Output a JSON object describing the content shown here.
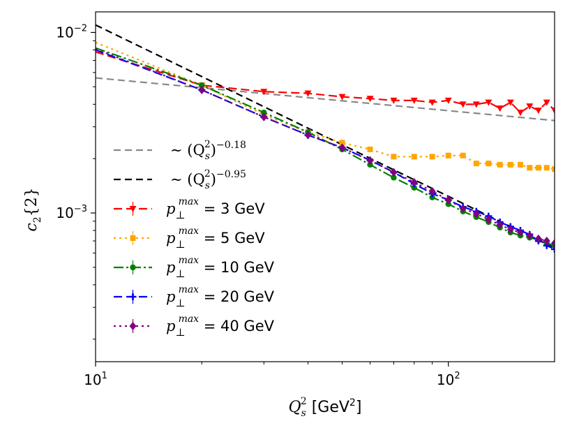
{
  "chart_data": {
    "type": "line",
    "xscale": "log",
    "yscale": "log",
    "xlim": [
      10,
      200
    ],
    "ylim": [
      0.00015,
      0.013
    ],
    "xlabel": "Q_s^2 [GeV^2]",
    "xlabel_parts": {
      "main": "Q",
      "sub": "s",
      "sup": "2",
      "unit": " [GeV",
      "unit_sup": "2",
      "unit_end": "]"
    },
    "ylabel": "c_2{2}",
    "ylabel_parts": {
      "main": "c",
      "sub": "2",
      "rest": "{2}"
    },
    "x_ticks": [
      {
        "value": 10,
        "base": "10",
        "exp": "1"
      },
      {
        "value": 100,
        "base": "10",
        "exp": "2"
      }
    ],
    "y_ticks": [
      {
        "value": 0.01,
        "base": "10",
        "exp": "−2"
      },
      {
        "value": 0.001,
        "base": "10",
        "exp": "−3"
      }
    ],
    "legend_position": "lower-left",
    "fits": [
      {
        "name": "fit-018",
        "label": "∼ (Q_s^2)^−0.18",
        "prefix": "∼ (Q",
        "sub": "s",
        "sup": "2",
        "close": ")",
        "exp": "−0.18",
        "color": "#888888",
        "dash": "10,6",
        "x": [
          10,
          200
        ],
        "y": [
          0.0056,
          0.00325
        ]
      },
      {
        "name": "fit-095",
        "label": "∼ (Q_s^2)^−0.95",
        "prefix": "∼ (Q",
        "sub": "s",
        "sup": "2",
        "close": ")",
        "exp": "−0.95",
        "color": "#000000",
        "dash": "10,6",
        "x": [
          10,
          200
        ],
        "y": [
          0.011,
          0.00064
        ]
      }
    ],
    "series": [
      {
        "name": "p3",
        "label": "p⊥^max = 3 GeV",
        "value_text": " = 3 GeV",
        "color": "#ff0000",
        "dash": "12,6",
        "marker": "triangle-down",
        "x": [
          10,
          20,
          30,
          40,
          50,
          60,
          70,
          80,
          90,
          100,
          110,
          120,
          130,
          140,
          150,
          160,
          170,
          180,
          190,
          200
        ],
        "y": [
          0.0078,
          0.0051,
          0.0047,
          0.0046,
          0.0044,
          0.0043,
          0.0042,
          0.0042,
          0.0041,
          0.0042,
          0.004,
          0.004,
          0.0041,
          0.0038,
          0.0041,
          0.0036,
          0.0039,
          0.0037,
          0.0041,
          0.0037
        ]
      },
      {
        "name": "p5",
        "label": "p⊥^max = 5 GeV",
        "value_text": " = 5 GeV",
        "color": "#ffa500",
        "dash": "3,5",
        "marker": "square",
        "x": [
          10,
          20,
          30,
          40,
          50,
          60,
          70,
          80,
          90,
          100,
          110,
          120,
          130,
          140,
          150,
          160,
          170,
          180,
          190,
          200
        ],
        "y": [
          0.0088,
          0.0051,
          0.0035,
          0.0028,
          0.00245,
          0.00225,
          0.00205,
          0.00205,
          0.00205,
          0.00208,
          0.00208,
          0.00188,
          0.00188,
          0.00185,
          0.00185,
          0.00185,
          0.00178,
          0.00178,
          0.00178,
          0.00175
        ]
      },
      {
        "name": "p10",
        "label": "p⊥^max = 10 GeV",
        "value_text": " = 10 GeV",
        "color": "#008000",
        "dash": "14,4,3,4",
        "marker": "circle",
        "x": [
          10,
          20,
          30,
          40,
          50,
          60,
          70,
          80,
          90,
          100,
          110,
          120,
          130,
          140,
          150,
          160,
          170,
          180,
          190,
          200
        ],
        "y": [
          0.0082,
          0.0051,
          0.0036,
          0.0028,
          0.00225,
          0.00185,
          0.00157,
          0.00138,
          0.00122,
          0.00112,
          0.00102,
          0.00095,
          0.00089,
          0.00083,
          0.00078,
          0.00075,
          0.00073,
          0.00071,
          0.00068,
          0.00066
        ]
      },
      {
        "name": "p20",
        "label": "p⊥^max = 20 GeV",
        "value_text": " = 20 GeV",
        "color": "#0000ff",
        "dash": "12,6",
        "marker": "plus",
        "x": [
          10,
          20,
          30,
          40,
          50,
          60,
          70,
          80,
          90,
          100,
          110,
          120,
          130,
          140,
          150,
          160,
          170,
          180,
          190,
          200
        ],
        "y": [
          0.008,
          0.0048,
          0.0034,
          0.0027,
          0.0023,
          0.00196,
          0.00168,
          0.00145,
          0.00128,
          0.00118,
          0.00108,
          0.00102,
          0.00096,
          0.00089,
          0.00084,
          0.0008,
          0.00076,
          0.0007,
          0.00066,
          0.00063
        ]
      },
      {
        "name": "p40",
        "label": "p⊥^max = 40 GeV",
        "value_text": " = 40 GeV",
        "color": "#800080",
        "dash": "3,5",
        "marker": "diamond",
        "x": [
          10,
          20,
          30,
          40,
          50,
          60,
          70,
          80,
          90,
          100,
          110,
          120,
          130,
          140,
          150,
          160,
          170,
          180,
          190,
          200
        ],
        "y": [
          0.0081,
          0.0048,
          0.0034,
          0.0027,
          0.0023,
          0.00195,
          0.00168,
          0.00148,
          0.00132,
          0.00118,
          0.00106,
          0.00099,
          0.00092,
          0.00086,
          0.00081,
          0.00078,
          0.00075,
          0.00072,
          0.0007,
          0.00068
        ]
      }
    ],
    "legend_symbol_text": {
      "p": "p",
      "sub": "⊥",
      "sup": "max"
    }
  }
}
